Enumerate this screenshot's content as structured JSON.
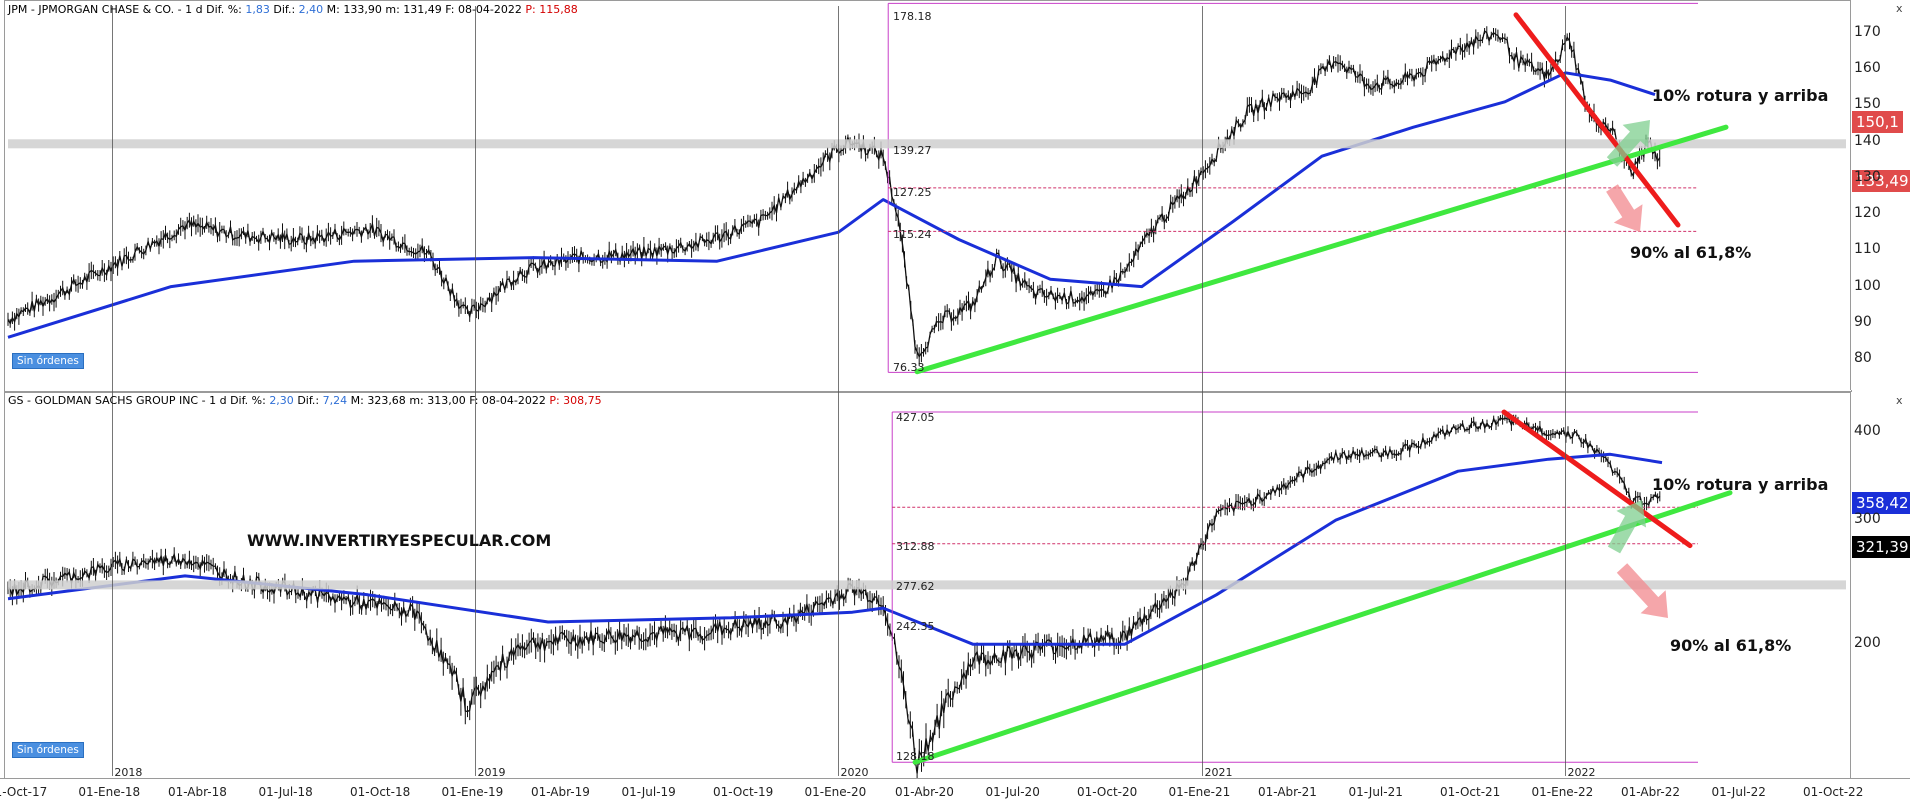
{
  "pane1": {
    "header": {
      "name": "JPM - JPMORGAN CHASE & CO. -",
      "period": "1 d",
      "dif_pct_label": "Dif. %:",
      "dif_pct": "1,83",
      "dif_label": "Dif.:",
      "dif": "2,40",
      "max": "M: 133,90",
      "min": "m: 131,49",
      "date": "F: 08-04-2022",
      "prev": "P: 115,88"
    },
    "badge": "Sin órdenes",
    "annotation_up": "10% rotura y arriba",
    "annotation_down": "90% al 61,8%",
    "levels": {
      "top": "178.18",
      "l1": "139.27",
      "l2": "127.25",
      "l3": "115.24",
      "bottom": "76.33"
    },
    "price_tag_ma": "150,1",
    "price_tag_last": "133,49",
    "colors": {
      "ma_tag": "#e04b4b",
      "last_tag": "#e04b4b"
    }
  },
  "pane2": {
    "header": {
      "name": "GS - GOLDMAN SACHS GROUP INC -",
      "period": "1 d",
      "dif_pct_label": "Dif. %:",
      "dif_pct": "2,30",
      "dif_label": "Dif.:",
      "dif": "7,24",
      "max": "M: 323,68",
      "min": "m: 313,00",
      "date": "F: 08-04-2022",
      "prev": "P: 308,75"
    },
    "badge": "Sin órdenes",
    "watermark": "WWW.INVERTIRYESPECULAR.COM",
    "annotation_up": "10% rotura y arriba",
    "annotation_down": "90% al 61,8%",
    "levels": {
      "top": "427.05",
      "l1": "312.88",
      "l2": "277.62",
      "l3": "242.35",
      "bottom": "128.18"
    },
    "price_tag_ma": "358,42",
    "price_tag_last": "321,39",
    "colors": {
      "ma_tag": "#1a2fd8",
      "last_tag": "#000000"
    }
  },
  "controls": {
    "close1": "x",
    "close2": "x"
  },
  "chart_data": [
    {
      "type": "line",
      "title": "JPM - JPMORGAN CHASE & CO.",
      "ylim": [
        72,
        178
      ],
      "yticks": [
        "170",
        "160",
        "150",
        "140",
        "130",
        "120",
        "110",
        "100",
        "90",
        "80"
      ],
      "x_range": [
        "2017-09-18",
        "2022-10-10"
      ],
      "series": [
        {
          "name": "",
          "x": [
            "2017-09-18",
            "2017-11-01",
            "2018-01-15",
            "2018-03-15",
            "2018-05-15",
            "2018-07-15",
            "2018-09-15",
            "2018-11-15",
            "2018-12-24",
            "2019-02-15",
            "2019-04-15",
            "2019-06-15",
            "2019-08-15",
            "2019-10-15",
            "2019-12-30",
            "2020-01-15",
            "2020-02-15",
            "2020-03-01",
            "2020-03-20",
            "2020-04-15",
            "2020-05-15",
            "2020-06-08",
            "2020-07-15",
            "2020-08-15",
            "2020-09-15",
            "2020-10-15",
            "2020-11-15",
            "2020-12-15",
            "2021-01-15",
            "2021-02-15",
            "2021-03-15",
            "2021-04-15",
            "2021-05-15",
            "2021-06-15",
            "2021-07-15",
            "2021-08-15",
            "2021-09-15",
            "2021-10-25",
            "2021-11-15",
            "2021-12-15",
            "2022-01-05",
            "2022-01-25",
            "2022-02-15",
            "2022-03-08",
            "2022-03-25",
            "2022-04-08"
          ],
          "values": [
            91,
            97,
            108,
            117,
            114,
            113,
            116,
            109,
            92,
            104,
            108,
            109,
            112,
            118,
            138,
            140,
            136,
            119,
            81,
            91,
            95,
            108,
            98,
            97,
            97,
            104,
            117,
            126,
            137,
            148,
            152,
            154,
            163,
            156,
            156,
            160,
            166,
            170,
            162,
            158,
            169,
            147,
            144,
            131,
            140,
            133
          ]
        },
        {
          "name": "",
          "x": [
            "2017-09-18",
            "2018-03-01",
            "2018-09-01",
            "2019-03-01",
            "2019-09-01",
            "2020-01-01",
            "2020-02-15",
            "2020-05-01",
            "2020-08-01",
            "2020-11-01",
            "2021-02-01",
            "2021-05-01",
            "2021-08-01",
            "2021-11-01",
            "2022-01-01",
            "2022-02-15",
            "2022-04-01"
          ],
          "values": [
            86,
            100,
            107,
            108,
            107,
            115,
            124,
            113,
            102,
            100,
            118,
            136,
            144,
            151,
            159,
            157,
            153
          ]
        }
      ]
    },
    {
      "type": "line",
      "title": "GS - GOLDMAN SACHS GROUP INC",
      "ylim": [
        130,
        450
      ],
      "yticks": [
        "400",
        "300",
        "200"
      ],
      "x_range": [
        "2017-09-18",
        "2022-10-10"
      ],
      "series": [
        {
          "name": "",
          "x": [
            "2017-09-18",
            "2017-11-01",
            "2018-01-15",
            "2018-03-15",
            "2018-05-15",
            "2018-08-15",
            "2018-11-01",
            "2018-12-24",
            "2019-02-15",
            "2019-05-15",
            "2019-08-15",
            "2019-11-15",
            "2020-01-15",
            "2020-02-15",
            "2020-03-20",
            "2020-05-15",
            "2020-08-15",
            "2020-10-15",
            "2020-12-15",
            "2021-01-15",
            "2021-03-15",
            "2021-05-15",
            "2021-07-15",
            "2021-09-15",
            "2021-11-01",
            "2021-12-15",
            "2022-01-10",
            "2022-02-15",
            "2022-03-08",
            "2022-04-08"
          ],
          "values": [
            238,
            246,
            260,
            265,
            245,
            232,
            222,
            164,
            200,
            205,
            208,
            217,
            240,
            230,
            135,
            190,
            200,
            205,
            245,
            305,
            330,
            370,
            375,
            405,
            415,
            400,
            398,
            360,
            320,
            321
          ]
        },
        {
          "name": "",
          "x": [
            "2017-09-18",
            "2018-03-15",
            "2018-09-15",
            "2019-03-15",
            "2019-09-15",
            "2020-01-15",
            "2020-02-15",
            "2020-05-15",
            "2020-10-15",
            "2021-01-15",
            "2021-05-15",
            "2021-09-15",
            "2021-12-15",
            "2022-02-15",
            "2022-04-08"
          ],
          "values": [
            232,
            250,
            235,
            215,
            218,
            222,
            225,
            200,
            200,
            235,
            300,
            352,
            366,
            372,
            362
          ]
        }
      ]
    }
  ]
}
